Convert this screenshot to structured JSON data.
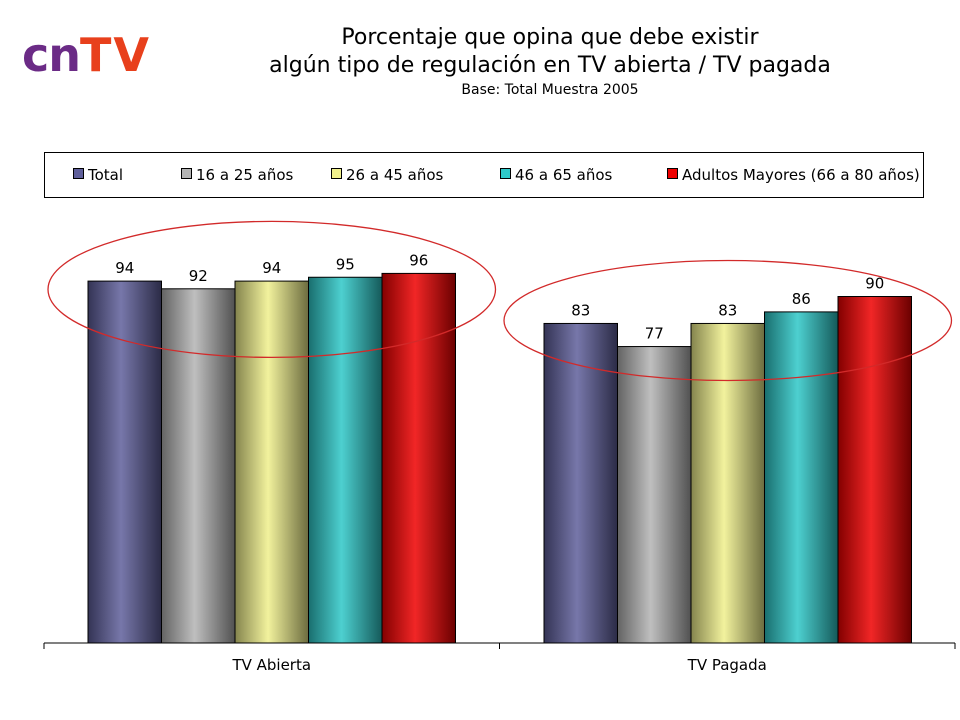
{
  "logo": {
    "part1": "cn",
    "part2": "TV"
  },
  "chart_data": {
    "type": "bar",
    "title": "Porcentaje que opina que debe existir",
    "title_line2": "algún tipo de regulación en TV abierta / TV pagada",
    "subtitle": "Base: Total Muestra 2005",
    "categories": [
      "TV Abierta",
      "TV Pagada"
    ],
    "series": [
      {
        "name": "Total",
        "values": [
          94,
          83
        ],
        "color": "#5f5f9b"
      },
      {
        "name": "16 a 25 años",
        "values": [
          92,
          77
        ],
        "color": "#b4b4b4"
      },
      {
        "name": "26 a 45 años",
        "values": [
          94,
          83
        ],
        "color": "#f0f08c"
      },
      {
        "name": "46 a 65 años",
        "values": [
          95,
          86
        ],
        "color": "#2ec8c8"
      },
      {
        "name": "Adultos Mayores (66 a 80 años)",
        "values": [
          96,
          90
        ],
        "color": "#ee0000"
      }
    ],
    "ylim": [
      0,
      100
    ],
    "grid": false,
    "legend_position": "top",
    "data_labels": true,
    "annotations": [
      "red ellipse around each category's bar group"
    ]
  }
}
